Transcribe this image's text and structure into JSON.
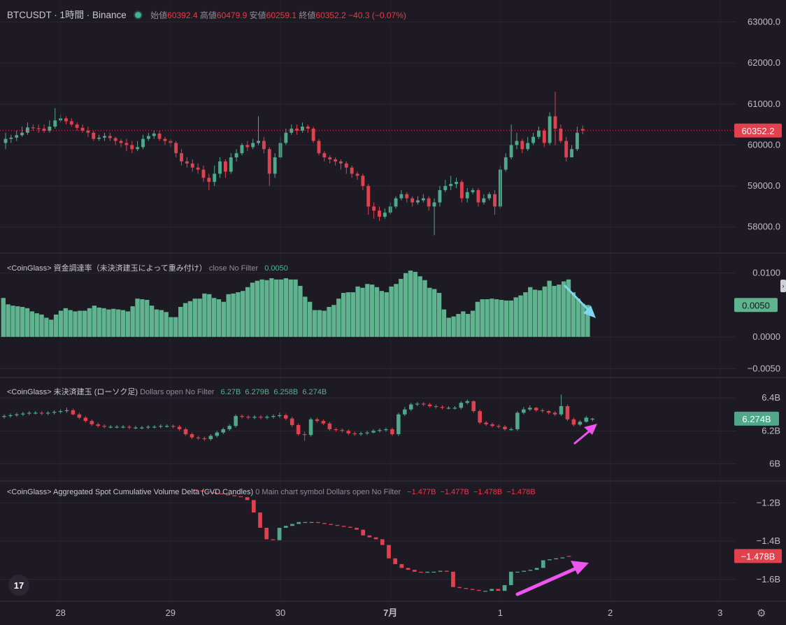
{
  "header": {
    "symbol": "BTCUSDT · 1時間 · Binance",
    "open_label": "始値",
    "open": "60392.4",
    "high_label": "高値",
    "high": "60479.9",
    "low_label": "安値",
    "low": "60259.1",
    "close_label": "終値",
    "close": "60352.2",
    "change": "−40.3 (−0.07%)"
  },
  "panes": {
    "funding": {
      "title": "<CoinGlass> 資金調達率（未決済建玉によって重み付け）",
      "params": "close No Filter",
      "value": "0.0050"
    },
    "oi": {
      "title": "<CoinGlass> 未決済建玉 (ローソク足)",
      "params": "Dollars open No Filter",
      "values": "6.27B  6.279B  6.258B  6.274B"
    },
    "cvd": {
      "title": "<CoinGlass> Aggregated Spot Cumulative Volume Delta (CVD Candles)",
      "params": "0 Main chart symbol Dollars open No Filter",
      "values": "−1.477B  −1.477B  −1.478B  −1.478B"
    }
  },
  "logo_text": "17",
  "colors": {
    "up": "#4fa88a",
    "down": "#e0414f",
    "funding_bar": "#5fb38e",
    "background": "#1d1a24",
    "grid": "#2a2733",
    "cyan_arrow": "#7fd6f0",
    "magenta_arrow": "#ee55ee"
  },
  "icons": {
    "logo": "tradingview-logo-icon",
    "settings": "gear-icon"
  },
  "chart_data": [
    {
      "type": "candlestick",
      "title": "BTCUSDT · 1時間 · Binance",
      "ylim": [
        57500,
        63300
      ],
      "yticks": [
        58000,
        59000,
        60000,
        61000,
        62000,
        63000
      ],
      "ytick_labels": [
        "58000.0",
        "59000.0",
        "60000.0",
        "61000.0",
        "62000.0",
        "63000.0"
      ],
      "xticks": [
        {
          "label": "28",
          "index": 10
        },
        {
          "label": "29",
          "index": 30
        },
        {
          "label": "30",
          "index": 50
        },
        {
          "label": "7月",
          "index": 70
        },
        {
          "label": "1",
          "index": 90
        },
        {
          "label": "2",
          "index": 110
        },
        {
          "label": "3",
          "index": 130
        }
      ],
      "last_price_label": "60352.2",
      "close": [
        60150,
        60180,
        60240,
        60300,
        60430,
        60410,
        60400,
        60350,
        60450,
        60600,
        60650,
        60580,
        60500,
        60420,
        60350,
        60300,
        60150,
        60180,
        60220,
        60170,
        60100,
        60050,
        60000,
        59900,
        59950,
        60150,
        60220,
        60280,
        60150,
        60100,
        60050,
        59800,
        59600,
        59550,
        59450,
        59400,
        59200,
        59100,
        59300,
        59600,
        59350,
        59700,
        59800,
        60000,
        59950,
        60050,
        60100,
        59900,
        59300,
        59700,
        60050,
        60300,
        60400,
        60350,
        60450,
        60400,
        60100,
        59800,
        59700,
        59650,
        59600,
        59550,
        59450,
        59300,
        59250,
        59000,
        58500,
        58400,
        58250,
        58350,
        58500,
        58700,
        58800,
        58700,
        58600,
        58650,
        58700,
        58500,
        58600,
        58900,
        59000,
        59050,
        59100,
        58700,
        58850,
        58900,
        58600,
        58700,
        58800,
        58500,
        59400,
        59700,
        60000,
        60100,
        59900,
        60050,
        60200,
        60350,
        60050,
        60700,
        60400,
        60100,
        59700,
        59900,
        60300,
        60352.2
      ],
      "open": [
        60050,
        60150,
        60180,
        60240,
        60300,
        60430,
        60410,
        60400,
        60350,
        60450,
        60600,
        60650,
        60580,
        60500,
        60420,
        60350,
        60300,
        60150,
        60180,
        60220,
        60170,
        60100,
        60050,
        60000,
        59900,
        59950,
        60150,
        60220,
        60280,
        60150,
        60100,
        60050,
        59800,
        59600,
        59550,
        59450,
        59400,
        59200,
        59100,
        59300,
        59600,
        59350,
        59700,
        59800,
        60000,
        59950,
        60050,
        60100,
        59900,
        59300,
        59700,
        60050,
        60300,
        60400,
        60350,
        60450,
        60400,
        60100,
        59800,
        59700,
        59650,
        59600,
        59550,
        59450,
        59300,
        59250,
        59000,
        58500,
        58400,
        58250,
        58350,
        58500,
        58700,
        58800,
        58700,
        58600,
        58650,
        58700,
        58500,
        58600,
        58900,
        59000,
        59050,
        59100,
        58700,
        58850,
        58900,
        58600,
        58700,
        58800,
        58500,
        59400,
        59700,
        60000,
        60100,
        59900,
        60050,
        60200,
        60350,
        60050,
        60700,
        60400,
        60100,
        59700,
        59900,
        60392.4
      ],
      "high": [
        60300,
        60250,
        60350,
        60450,
        60550,
        60500,
        60500,
        60500,
        60600,
        60900,
        60750,
        60700,
        60650,
        60550,
        60500,
        60450,
        60350,
        60250,
        60300,
        60300,
        60200,
        60150,
        60150,
        60100,
        60100,
        60250,
        60300,
        60350,
        60350,
        60200,
        60150,
        60100,
        59900,
        59700,
        59650,
        59550,
        59500,
        59300,
        59500,
        59700,
        59650,
        59800,
        59900,
        60050,
        60100,
        60150,
        60700,
        60200,
        59950,
        59800,
        60200,
        60400,
        60500,
        60500,
        60550,
        60500,
        60450,
        60150,
        59850,
        59750,
        59700,
        59650,
        59600,
        59500,
        59350,
        59300,
        59050,
        58600,
        58500,
        58450,
        58600,
        58750,
        58900,
        58850,
        58750,
        58750,
        58800,
        58750,
        58700,
        59000,
        59150,
        59250,
        59200,
        59150,
        58950,
        58950,
        58950,
        58800,
        58850,
        58900,
        59500,
        59800,
        60500,
        60300,
        60150,
        60200,
        60300,
        60450,
        60400,
        60800,
        61300,
        60500,
        60200,
        60000,
        60450,
        60479.9
      ],
      "low": [
        59900,
        60050,
        60100,
        60200,
        60250,
        60350,
        60300,
        60300,
        60300,
        60400,
        60550,
        60500,
        60450,
        60350,
        60300,
        60200,
        60100,
        60100,
        60100,
        60100,
        60000,
        59950,
        59850,
        59800,
        59850,
        59900,
        60100,
        60150,
        60100,
        60000,
        59950,
        59700,
        59500,
        59450,
        59350,
        59300,
        59100,
        58900,
        59000,
        59200,
        59200,
        59300,
        59600,
        59750,
        59850,
        59900,
        60000,
        59800,
        59000,
        59200,
        59650,
        60000,
        60250,
        60250,
        60300,
        60300,
        60050,
        59750,
        59600,
        59550,
        59500,
        59400,
        59300,
        59200,
        59150,
        58900,
        58300,
        58200,
        58150,
        58200,
        58300,
        58450,
        58650,
        58600,
        58500,
        58550,
        58600,
        58400,
        57800,
        58500,
        58850,
        58900,
        58950,
        58600,
        58600,
        58800,
        58500,
        58550,
        58650,
        58300,
        58450,
        59350,
        59650,
        59900,
        59800,
        59850,
        60000,
        60150,
        59950,
        60000,
        60000,
        60050,
        59600,
        59700,
        59850,
        60259.1
      ]
    },
    {
      "type": "bar",
      "title": "<CoinGlass> 資金調達率（未決済建玉によって重み付け）",
      "ylim": [
        -0.0055,
        0.0115
      ],
      "yticks": [
        -0.005,
        0.0,
        0.01
      ],
      "ytick_labels": [
        "−0.0050",
        "0.0000",
        "0.0100"
      ],
      "last_value_label": "0.0050",
      "values": [
        0.0061,
        0.0051,
        0.0049,
        0.0048,
        0.0047,
        0.0045,
        0.004,
        0.0037,
        0.0035,
        0.003,
        0.0027,
        0.0035,
        0.0041,
        0.0045,
        0.0042,
        0.004,
        0.0041,
        0.0041,
        0.0045,
        0.0049,
        0.0046,
        0.0045,
        0.0043,
        0.0044,
        0.0043,
        0.0042,
        0.004,
        0.0048,
        0.006,
        0.0059,
        0.0058,
        0.0049,
        0.0043,
        0.0042,
        0.0039,
        0.0031,
        0.0031,
        0.0047,
        0.0053,
        0.0056,
        0.006,
        0.006,
        0.0068,
        0.0067,
        0.0061,
        0.0059,
        0.0055,
        0.0067,
        0.0068,
        0.007,
        0.0072,
        0.0078,
        0.0085,
        0.0088,
        0.009,
        0.0089,
        0.0092,
        0.009,
        0.009,
        0.0092,
        0.009,
        0.009,
        0.008,
        0.0063,
        0.0055,
        0.0042,
        0.0042,
        0.0041,
        0.0047,
        0.005,
        0.006,
        0.0069,
        0.007,
        0.007,
        0.0079,
        0.0077,
        0.0083,
        0.0082,
        0.0078,
        0.0072,
        0.007,
        0.0079,
        0.0083,
        0.0091,
        0.01,
        0.0104,
        0.0102,
        0.0095,
        0.0089,
        0.0077,
        0.0075,
        0.0069,
        0.0043,
        0.003,
        0.0032,
        0.0036,
        0.004,
        0.0036,
        0.0041,
        0.0055,
        0.0059,
        0.0059,
        0.006,
        0.0059,
        0.0058,
        0.0057,
        0.0057,
        0.0062,
        0.0065,
        0.007,
        0.0078,
        0.0074,
        0.0073,
        0.0079,
        0.0088,
        0.008,
        0.0082,
        0.0087,
        0.009,
        0.007,
        0.006,
        0.0052,
        0.005
      ]
    },
    {
      "type": "candlestick",
      "title": "<CoinGlass> 未決済建玉 (ローソク足)",
      "ylim": [
        5.93,
        6.46
      ],
      "yticks": [
        6.0,
        6.2,
        6.4
      ],
      "ytick_labels": [
        "6B",
        "6.2B",
        "6.4B"
      ],
      "last_value_label": "6.274B",
      "close": [
        6.29,
        6.295,
        6.3,
        6.305,
        6.31,
        6.31,
        6.305,
        6.31,
        6.315,
        6.32,
        6.325,
        6.3,
        6.28,
        6.26,
        6.24,
        6.23,
        6.225,
        6.225,
        6.225,
        6.225,
        6.22,
        6.22,
        6.22,
        6.225,
        6.225,
        6.23,
        6.23,
        6.225,
        6.21,
        6.18,
        6.16,
        6.155,
        6.15,
        6.17,
        6.19,
        6.21,
        6.23,
        6.29,
        6.285,
        6.28,
        6.285,
        6.28,
        6.285,
        6.29,
        6.295,
        6.275,
        6.235,
        6.18,
        6.175,
        6.27,
        6.26,
        6.245,
        6.21,
        6.205,
        6.2,
        6.185,
        6.18,
        6.185,
        6.19,
        6.2,
        6.205,
        6.21,
        6.18,
        6.3,
        6.33,
        6.36,
        6.365,
        6.36,
        6.35,
        6.345,
        6.34,
        6.34,
        6.34,
        6.37,
        6.38,
        6.32,
        6.25,
        6.24,
        6.23,
        6.225,
        6.21,
        6.21,
        6.31,
        6.33,
        6.34,
        6.325,
        6.32,
        6.31,
        6.3,
        6.35,
        6.27,
        6.238,
        6.255,
        6.28,
        6.274
      ],
      "open": [
        6.285,
        6.29,
        6.295,
        6.3,
        6.305,
        6.31,
        6.31,
        6.305,
        6.31,
        6.315,
        6.32,
        6.325,
        6.3,
        6.28,
        6.26,
        6.24,
        6.23,
        6.225,
        6.225,
        6.225,
        6.225,
        6.22,
        6.22,
        6.22,
        6.225,
        6.225,
        6.23,
        6.23,
        6.225,
        6.21,
        6.18,
        6.16,
        6.155,
        6.15,
        6.17,
        6.19,
        6.21,
        6.23,
        6.29,
        6.285,
        6.28,
        6.285,
        6.28,
        6.285,
        6.29,
        6.295,
        6.275,
        6.235,
        6.18,
        6.175,
        6.27,
        6.26,
        6.245,
        6.21,
        6.205,
        6.2,
        6.185,
        6.18,
        6.185,
        6.19,
        6.2,
        6.205,
        6.21,
        6.18,
        6.3,
        6.33,
        6.36,
        6.365,
        6.36,
        6.35,
        6.345,
        6.34,
        6.34,
        6.34,
        6.37,
        6.38,
        6.32,
        6.25,
        6.24,
        6.23,
        6.225,
        6.21,
        6.21,
        6.31,
        6.33,
        6.34,
        6.325,
        6.32,
        6.31,
        6.3,
        6.35,
        6.27,
        6.238,
        6.255,
        6.27
      ],
      "high": [
        6.3,
        6.305,
        6.31,
        6.315,
        6.32,
        6.32,
        6.32,
        6.32,
        6.325,
        6.33,
        6.34,
        6.335,
        6.31,
        6.29,
        6.27,
        6.25,
        6.24,
        6.235,
        6.235,
        6.235,
        6.235,
        6.23,
        6.23,
        6.235,
        6.235,
        6.24,
        6.24,
        6.24,
        6.235,
        6.22,
        6.19,
        6.17,
        6.165,
        6.18,
        6.2,
        6.22,
        6.24,
        6.3,
        6.3,
        6.295,
        6.295,
        6.295,
        6.295,
        6.3,
        6.31,
        6.305,
        6.285,
        6.245,
        6.195,
        6.28,
        6.28,
        6.27,
        6.255,
        6.22,
        6.215,
        6.21,
        6.195,
        6.195,
        6.2,
        6.21,
        6.215,
        6.22,
        6.22,
        6.31,
        6.345,
        6.37,
        6.375,
        6.375,
        6.37,
        6.36,
        6.355,
        6.35,
        6.35,
        6.38,
        6.39,
        6.385,
        6.33,
        6.26,
        6.25,
        6.24,
        6.235,
        6.22,
        6.32,
        6.345,
        6.355,
        6.345,
        6.335,
        6.325,
        6.32,
        6.42,
        6.36,
        6.28,
        6.265,
        6.29,
        6.279
      ],
      "low": [
        6.275,
        6.28,
        6.285,
        6.29,
        6.295,
        6.3,
        6.295,
        6.295,
        6.3,
        6.305,
        6.31,
        6.295,
        6.27,
        6.25,
        6.23,
        6.22,
        6.215,
        6.215,
        6.215,
        6.215,
        6.21,
        6.21,
        6.21,
        6.21,
        6.215,
        6.215,
        6.22,
        6.215,
        6.2,
        6.17,
        6.15,
        6.145,
        6.14,
        6.14,
        6.16,
        6.18,
        6.2,
        6.22,
        6.275,
        6.27,
        6.27,
        6.27,
        6.27,
        6.275,
        6.28,
        6.265,
        6.225,
        6.17,
        6.14,
        6.165,
        6.25,
        6.235,
        6.2,
        6.195,
        6.19,
        6.175,
        6.17,
        6.17,
        6.175,
        6.185,
        6.19,
        6.195,
        6.17,
        6.17,
        6.29,
        6.32,
        6.35,
        6.35,
        6.34,
        6.335,
        6.33,
        6.33,
        6.33,
        6.33,
        6.36,
        6.31,
        6.24,
        6.23,
        6.22,
        6.215,
        6.2,
        6.2,
        6.2,
        6.3,
        6.32,
        6.315,
        6.31,
        6.3,
        6.29,
        6.29,
        6.26,
        6.228,
        6.23,
        6.25,
        6.258
      ]
    },
    {
      "type": "candlestick",
      "title": "<CoinGlass> Aggregated Spot Cumulative Volume Delta (CVD Candles)",
      "ylim": [
        -1.685,
        -1.14
      ],
      "yticks": [
        -1.6,
        -1.4,
        -1.2
      ],
      "ytick_labels": [
        "−1.6B",
        "−1.4B",
        "−1.2B"
      ],
      "last_value_label": "−1.478B",
      "close": [
        -1.135,
        -1.14,
        -1.145,
        -1.15,
        -1.155,
        -1.16,
        -1.165,
        -1.17,
        -1.185,
        -1.25,
        -1.33,
        -1.39,
        -1.395,
        -1.33,
        -1.32,
        -1.31,
        -1.3,
        -1.3,
        -1.3,
        -1.305,
        -1.31,
        -1.315,
        -1.32,
        -1.325,
        -1.33,
        -1.34,
        -1.37,
        -1.38,
        -1.39,
        -1.42,
        -1.49,
        -1.52,
        -1.54,
        -1.55,
        -1.56,
        -1.565,
        -1.56,
        -1.56,
        -1.555,
        -1.56,
        -1.64,
        -1.645,
        -1.65,
        -1.655,
        -1.66,
        -1.66,
        -1.65,
        -1.66,
        -1.63,
        -1.56,
        -1.56,
        -1.555,
        -1.55,
        -1.54,
        -1.5,
        -1.495,
        -1.49,
        -1.485,
        -1.478
      ],
      "open": [
        -1.13,
        -1.135,
        -1.14,
        -1.145,
        -1.15,
        -1.155,
        -1.16,
        -1.165,
        -1.17,
        -1.185,
        -1.25,
        -1.33,
        -1.39,
        -1.395,
        -1.33,
        -1.32,
        -1.31,
        -1.3,
        -1.3,
        -1.3,
        -1.305,
        -1.31,
        -1.315,
        -1.32,
        -1.325,
        -1.33,
        -1.34,
        -1.37,
        -1.38,
        -1.39,
        -1.42,
        -1.49,
        -1.52,
        -1.54,
        -1.55,
        -1.56,
        -1.565,
        -1.56,
        -1.56,
        -1.555,
        -1.56,
        -1.64,
        -1.645,
        -1.65,
        -1.655,
        -1.66,
        -1.66,
        -1.65,
        -1.66,
        -1.63,
        -1.56,
        -1.56,
        -1.555,
        -1.55,
        -1.54,
        -1.5,
        -1.495,
        -1.49,
        -1.477
      ]
    }
  ]
}
